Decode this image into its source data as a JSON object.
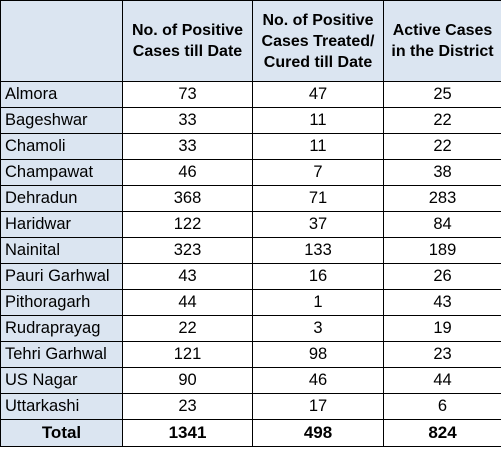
{
  "table": {
    "headers": [
      "",
      [
        "No. of Positive",
        "Cases till Date"
      ],
      [
        "No. of Positive",
        "Cases Treated/",
        "Cured till Date"
      ],
      [
        "Active Cases",
        "in the District"
      ]
    ],
    "rows": [
      {
        "district": "Almora",
        "positive": "73",
        "cured": "47",
        "active": "25"
      },
      {
        "district": "Bageshwar",
        "positive": "33",
        "cured": "11",
        "active": "22"
      },
      {
        "district": "Chamoli",
        "positive": "33",
        "cured": "11",
        "active": "22"
      },
      {
        "district": "Champawat",
        "positive": "46",
        "cured": "7",
        "active": "38"
      },
      {
        "district": "Dehradun",
        "positive": "368",
        "cured": "71",
        "active": "283"
      },
      {
        "district": "Haridwar",
        "positive": "122",
        "cured": "37",
        "active": "84"
      },
      {
        "district": "Nainital",
        "positive": "323",
        "cured": "133",
        "active": "189"
      },
      {
        "district": "Pauri Garhwal",
        "positive": "43",
        "cured": "16",
        "active": "26"
      },
      {
        "district": "Pithoragarh",
        "positive": "44",
        "cured": "1",
        "active": "43"
      },
      {
        "district": "Rudraprayag",
        "positive": "22",
        "cured": "3",
        "active": "19"
      },
      {
        "district": "Tehri Garhwal",
        "positive": "121",
        "cured": "98",
        "active": "23"
      },
      {
        "district": "US Nagar",
        "positive": "90",
        "cured": "46",
        "active": "44"
      },
      {
        "district": "Uttarkashi",
        "positive": "23",
        "cured": "17",
        "active": "6"
      }
    ],
    "total": {
      "label": "Total",
      "positive": "1341",
      "cured": "498",
      "active": "824"
    }
  },
  "colors": {
    "header_bg": "#dbe5f1",
    "border": "#000000"
  }
}
